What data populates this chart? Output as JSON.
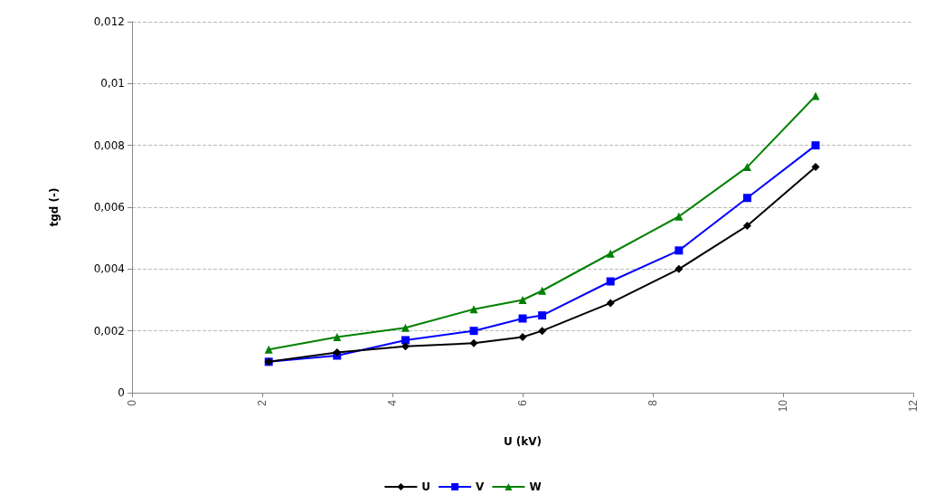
{
  "chart_data": {
    "type": "line",
    "xlabel": "U (kV)",
    "ylabel": "tgd (-)",
    "x": [
      2.1,
      3.15,
      4.2,
      5.25,
      6.0,
      6.3,
      7.35,
      8.4,
      9.45,
      10.5
    ],
    "series": [
      {
        "name": "U",
        "color": "#000000",
        "marker": "diamond",
        "values": [
          0.001,
          0.0013,
          0.0015,
          0.0016,
          0.0018,
          0.002,
          0.0029,
          0.004,
          0.0054,
          0.0073
        ]
      },
      {
        "name": "V",
        "color": "#0000ff",
        "marker": "square",
        "values": [
          0.001,
          0.0012,
          0.0017,
          0.002,
          0.0024,
          0.0025,
          0.0036,
          0.0046,
          0.0063,
          0.008
        ]
      },
      {
        "name": "W",
        "color": "#008000",
        "marker": "triangle",
        "values": [
          0.0014,
          0.0018,
          0.0021,
          0.0027,
          0.003,
          0.0033,
          0.0045,
          0.0057,
          0.0073,
          0.0096
        ]
      }
    ],
    "xlim": [
      0,
      12
    ],
    "xticks": [
      0,
      2,
      4,
      6,
      8,
      10,
      12
    ],
    "ylim": [
      0,
      0.012
    ],
    "yticks": [
      0,
      {
        "value": 0.002,
        "label": "0,002"
      },
      {
        "value": 0.004,
        "label": "0,004"
      },
      {
        "value": 0.006,
        "label": "0,006"
      },
      {
        "value": 0.008,
        "label": "0,008"
      },
      {
        "value": 0.01,
        "label": "0,01"
      },
      {
        "value": 0.012,
        "label": "0,012"
      }
    ],
    "grid": "y",
    "legend": "bottom",
    "line_style": "solid"
  }
}
